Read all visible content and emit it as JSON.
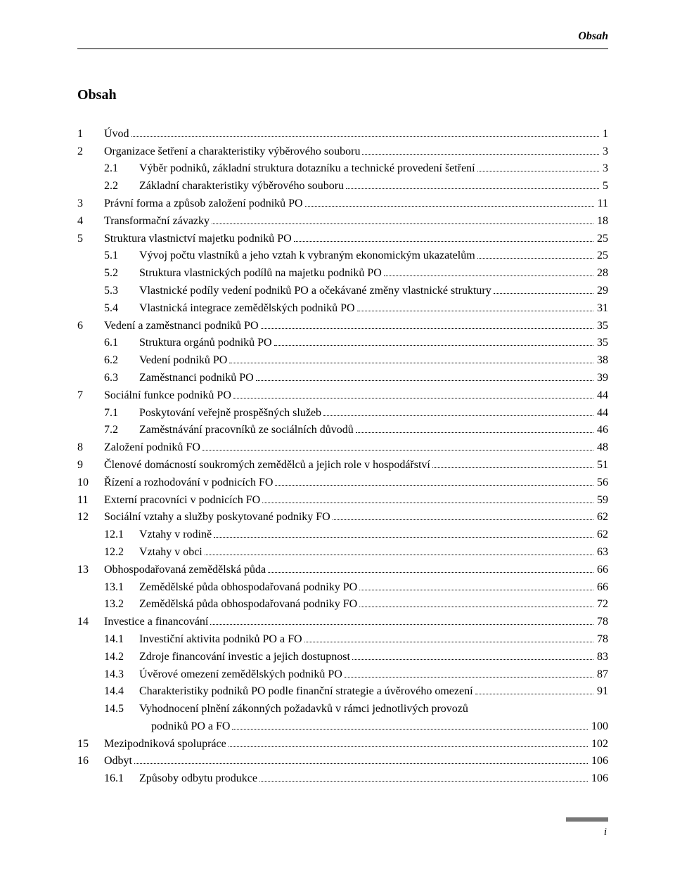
{
  "header": "Obsah",
  "title": "Obsah",
  "footer_page": "i",
  "toc": [
    {
      "level": 1,
      "num": "1",
      "text": "Úvod",
      "page": "1"
    },
    {
      "level": 1,
      "num": "2",
      "text": "Organizace šetření a charakteristiky výběrového souboru",
      "page": "3"
    },
    {
      "level": 2,
      "num": "2.1",
      "text": "Výběr podniků, základní struktura dotazníku a technické provedení šetření",
      "page": "3"
    },
    {
      "level": 2,
      "num": "2.2",
      "text": "Základní charakteristiky výběrového souboru",
      "page": "5"
    },
    {
      "level": 1,
      "num": "3",
      "text": "Právní forma a způsob založení podniků PO",
      "page": "11"
    },
    {
      "level": 1,
      "num": "4",
      "text": "Transformační závazky",
      "page": "18"
    },
    {
      "level": 1,
      "num": "5",
      "text": "Struktura vlastnictví majetku podniků PO",
      "page": "25"
    },
    {
      "level": 2,
      "num": "5.1",
      "text": "Vývoj počtu vlastníků a jeho vztah k vybraným ekonomickým ukazatelům",
      "page": "25"
    },
    {
      "level": 2,
      "num": "5.2",
      "text": "Struktura vlastnických podílů na majetku podniků PO",
      "page": "28"
    },
    {
      "level": 2,
      "num": "5.3",
      "text": "Vlastnické podíly vedení podniků PO a očekávané změny vlastnické struktury",
      "page": "29"
    },
    {
      "level": 2,
      "num": "5.4",
      "text": "Vlastnická integrace zemědělských podniků PO",
      "page": "31"
    },
    {
      "level": 1,
      "num": "6",
      "text": "Vedení a zaměstnanci podniků PO",
      "page": "35"
    },
    {
      "level": 2,
      "num": "6.1",
      "text": "Struktura orgánů podniků PO",
      "page": "35"
    },
    {
      "level": 2,
      "num": "6.2",
      "text": "Vedení podniků PO",
      "page": "38"
    },
    {
      "level": 2,
      "num": "6.3",
      "text": "Zaměstnanci podniků PO",
      "page": "39"
    },
    {
      "level": 1,
      "num": "7",
      "text": "Sociální funkce podniků PO",
      "page": "44"
    },
    {
      "level": 2,
      "num": "7.1",
      "text": "Poskytování veřejně prospěšných služeb",
      "page": "44"
    },
    {
      "level": 2,
      "num": "7.2",
      "text": "Zaměstnávání pracovníků ze sociálních důvodů",
      "page": "46"
    },
    {
      "level": 1,
      "num": "8",
      "text": "Založení podniků FO",
      "page": "48"
    },
    {
      "level": 1,
      "num": "9",
      "text": "Členové domácností soukromých zemědělců a jejich role v hospodářství",
      "page": "51"
    },
    {
      "level": 1,
      "num": "10",
      "text": "Řízení a rozhodování v podnicích FO",
      "page": "56"
    },
    {
      "level": 1,
      "num": "11",
      "text": "Externí pracovníci v podnicích FO",
      "page": "59"
    },
    {
      "level": 1,
      "num": "12",
      "text": "Sociální vztahy a služby poskytované podniky FO",
      "page": "62"
    },
    {
      "level": 2,
      "num": "12.1",
      "text": "Vztahy v rodině",
      "page": "62"
    },
    {
      "level": 2,
      "num": "12.2",
      "text": "Vztahy v obci",
      "page": "63"
    },
    {
      "level": 1,
      "num": "13",
      "text": "Obhospodařovaná zemědělská půda",
      "page": "66"
    },
    {
      "level": 2,
      "num": "13.1",
      "text": "Zemědělské půda obhospodařovaná podniky PO",
      "page": "66"
    },
    {
      "level": 2,
      "num": "13.2",
      "text": "Zemědělská půda obhospodařovaná podniky FO",
      "page": "72"
    },
    {
      "level": 1,
      "num": "14",
      "text": "Investice a financování",
      "page": "78"
    },
    {
      "level": 2,
      "num": "14.1",
      "text": "Investiční aktivita podniků PO a FO",
      "page": "78"
    },
    {
      "level": 2,
      "num": "14.2",
      "text": "Zdroje financování investic a jejich dostupnost",
      "page": "83"
    },
    {
      "level": 2,
      "num": "14.3",
      "text": "Úvěrové omezení zemědělských podniků PO",
      "page": "87"
    },
    {
      "level": 2,
      "num": "14.4",
      "text": "Charakteristiky podniků PO podle finanční strategie a úvěrového omezení",
      "page": "91"
    },
    {
      "level": 2,
      "num": "14.5",
      "text": "Vyhodnocení plnění zákonných požadavků v rámci jednotlivých provozů",
      "wrap": "podniků PO a FO",
      "page": "100"
    },
    {
      "level": 1,
      "num": "15",
      "text": "Mezipodniková spolupráce",
      "page": "102"
    },
    {
      "level": 1,
      "num": "16",
      "text": "Odbyt",
      "page": "106"
    },
    {
      "level": 2,
      "num": "16.1",
      "text": "Způsoby odbytu produkce",
      "page": "106"
    }
  ]
}
